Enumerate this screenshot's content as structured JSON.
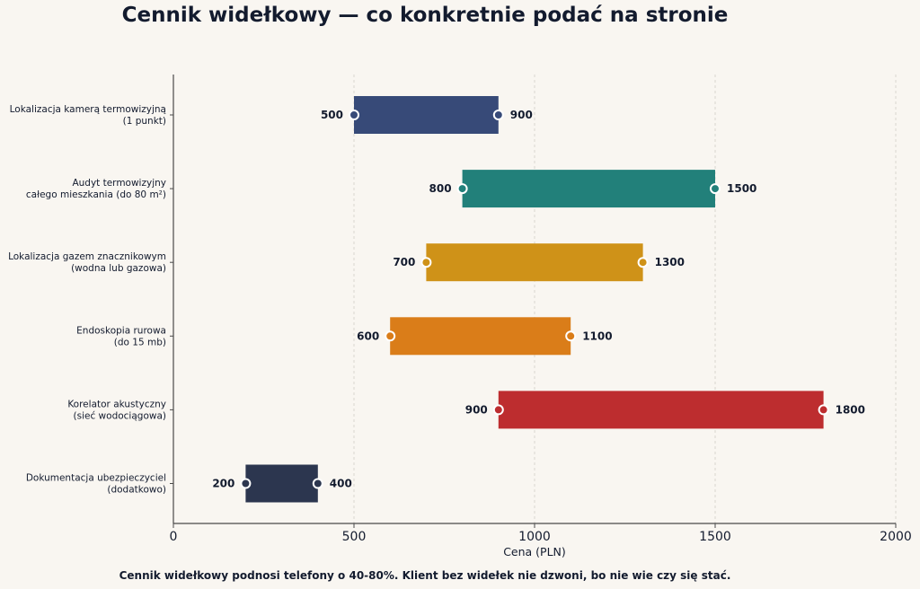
{
  "title": "Cennik widełkowy — co konkretnie podać na stronie",
  "footnote": "Cennik widełkowy podnosi telefony o 40-80%. Klient bez widełek nie dzwoni, bo nie wie czy się stać.",
  "chart_data": {
    "type": "bar",
    "orientation": "horizontal",
    "subtype": "range",
    "title": "Cennik widełkowy — co konkretnie podać na stronie",
    "xlabel": "Cena (PLN)",
    "ylabel": "",
    "xlim": [
      0,
      2000
    ],
    "xticks": [
      0,
      500,
      1000,
      1500,
      2000
    ],
    "grid": "x-dashed",
    "categories": [
      [
        "Lokalizacja kamerą termowizyjną",
        "(1 punkt)"
      ],
      [
        "Audyt termowizyjny",
        "całego mieszkania (do 80 m²)"
      ],
      [
        "Lokalizacja gazem znacznikowym",
        "(wodna lub gazowa)"
      ],
      [
        "Endoskopia rurowa",
        "(do 15 mb)"
      ],
      [
        "Korelator akustyczny",
        "(sieć wodociągowa)"
      ],
      [
        "Dokumentacja ubezpieczyciel",
        "(dodatkowo)"
      ]
    ],
    "ranges": [
      {
        "min": 500,
        "max": 900,
        "color": "#374a78"
      },
      {
        "min": 800,
        "max": 1500,
        "color": "#22807a"
      },
      {
        "min": 700,
        "max": 1300,
        "color": "#cf9218"
      },
      {
        "min": 600,
        "max": 1100,
        "color": "#da7d19"
      },
      {
        "min": 900,
        "max": 1800,
        "color": "#bd2d2f"
      },
      {
        "min": 200,
        "max": 400,
        "color": "#2c364f"
      }
    ]
  }
}
